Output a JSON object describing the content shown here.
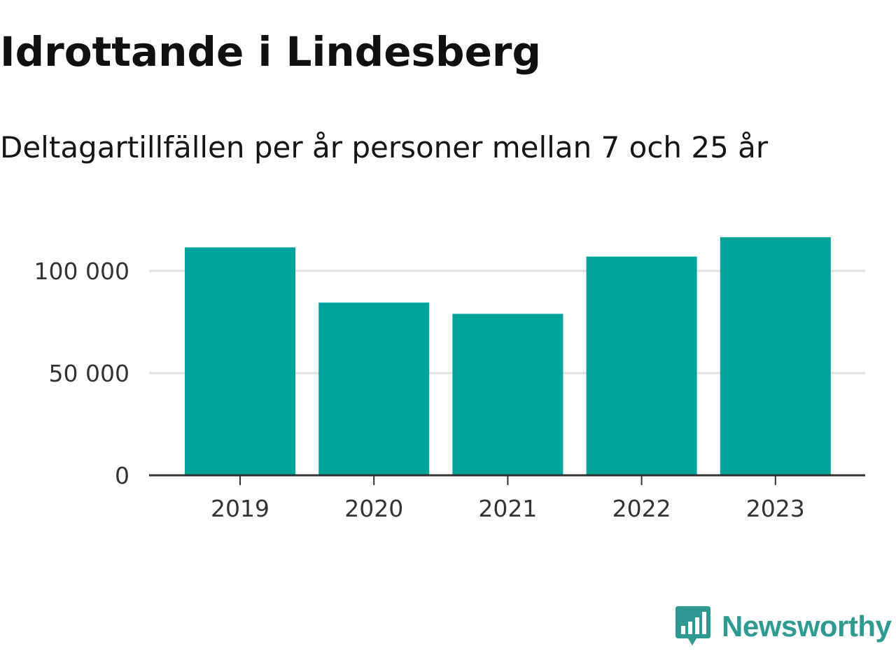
{
  "title": "Idrottande i Lindesberg",
  "subtitle": "Deltagartillfällen per år personer mellan 7 och 25 år",
  "brand": {
    "name": "Newsworthy",
    "logo_icon": "bar-chart-speech-bubble-icon"
  },
  "colors": {
    "bar": "#00a39a",
    "gridline": "#e0e0e0",
    "axis": "#333333",
    "tick_text": "#333333",
    "brand": "#2e9a91"
  },
  "chart_data": {
    "type": "bar",
    "title": "Deltagartillfällen per år personer mellan 7 och 25 år",
    "xlabel": "",
    "ylabel": "",
    "categories": [
      "2019",
      "2020",
      "2021",
      "2022",
      "2023"
    ],
    "values": [
      111500,
      84500,
      79000,
      107000,
      116500
    ],
    "ylim": [
      0,
      120000
    ],
    "yticks": [
      0,
      50000,
      100000
    ],
    "ytick_labels": [
      "0",
      "50 000",
      "100 000"
    ],
    "grid": "horizontal",
    "legend": "none"
  }
}
